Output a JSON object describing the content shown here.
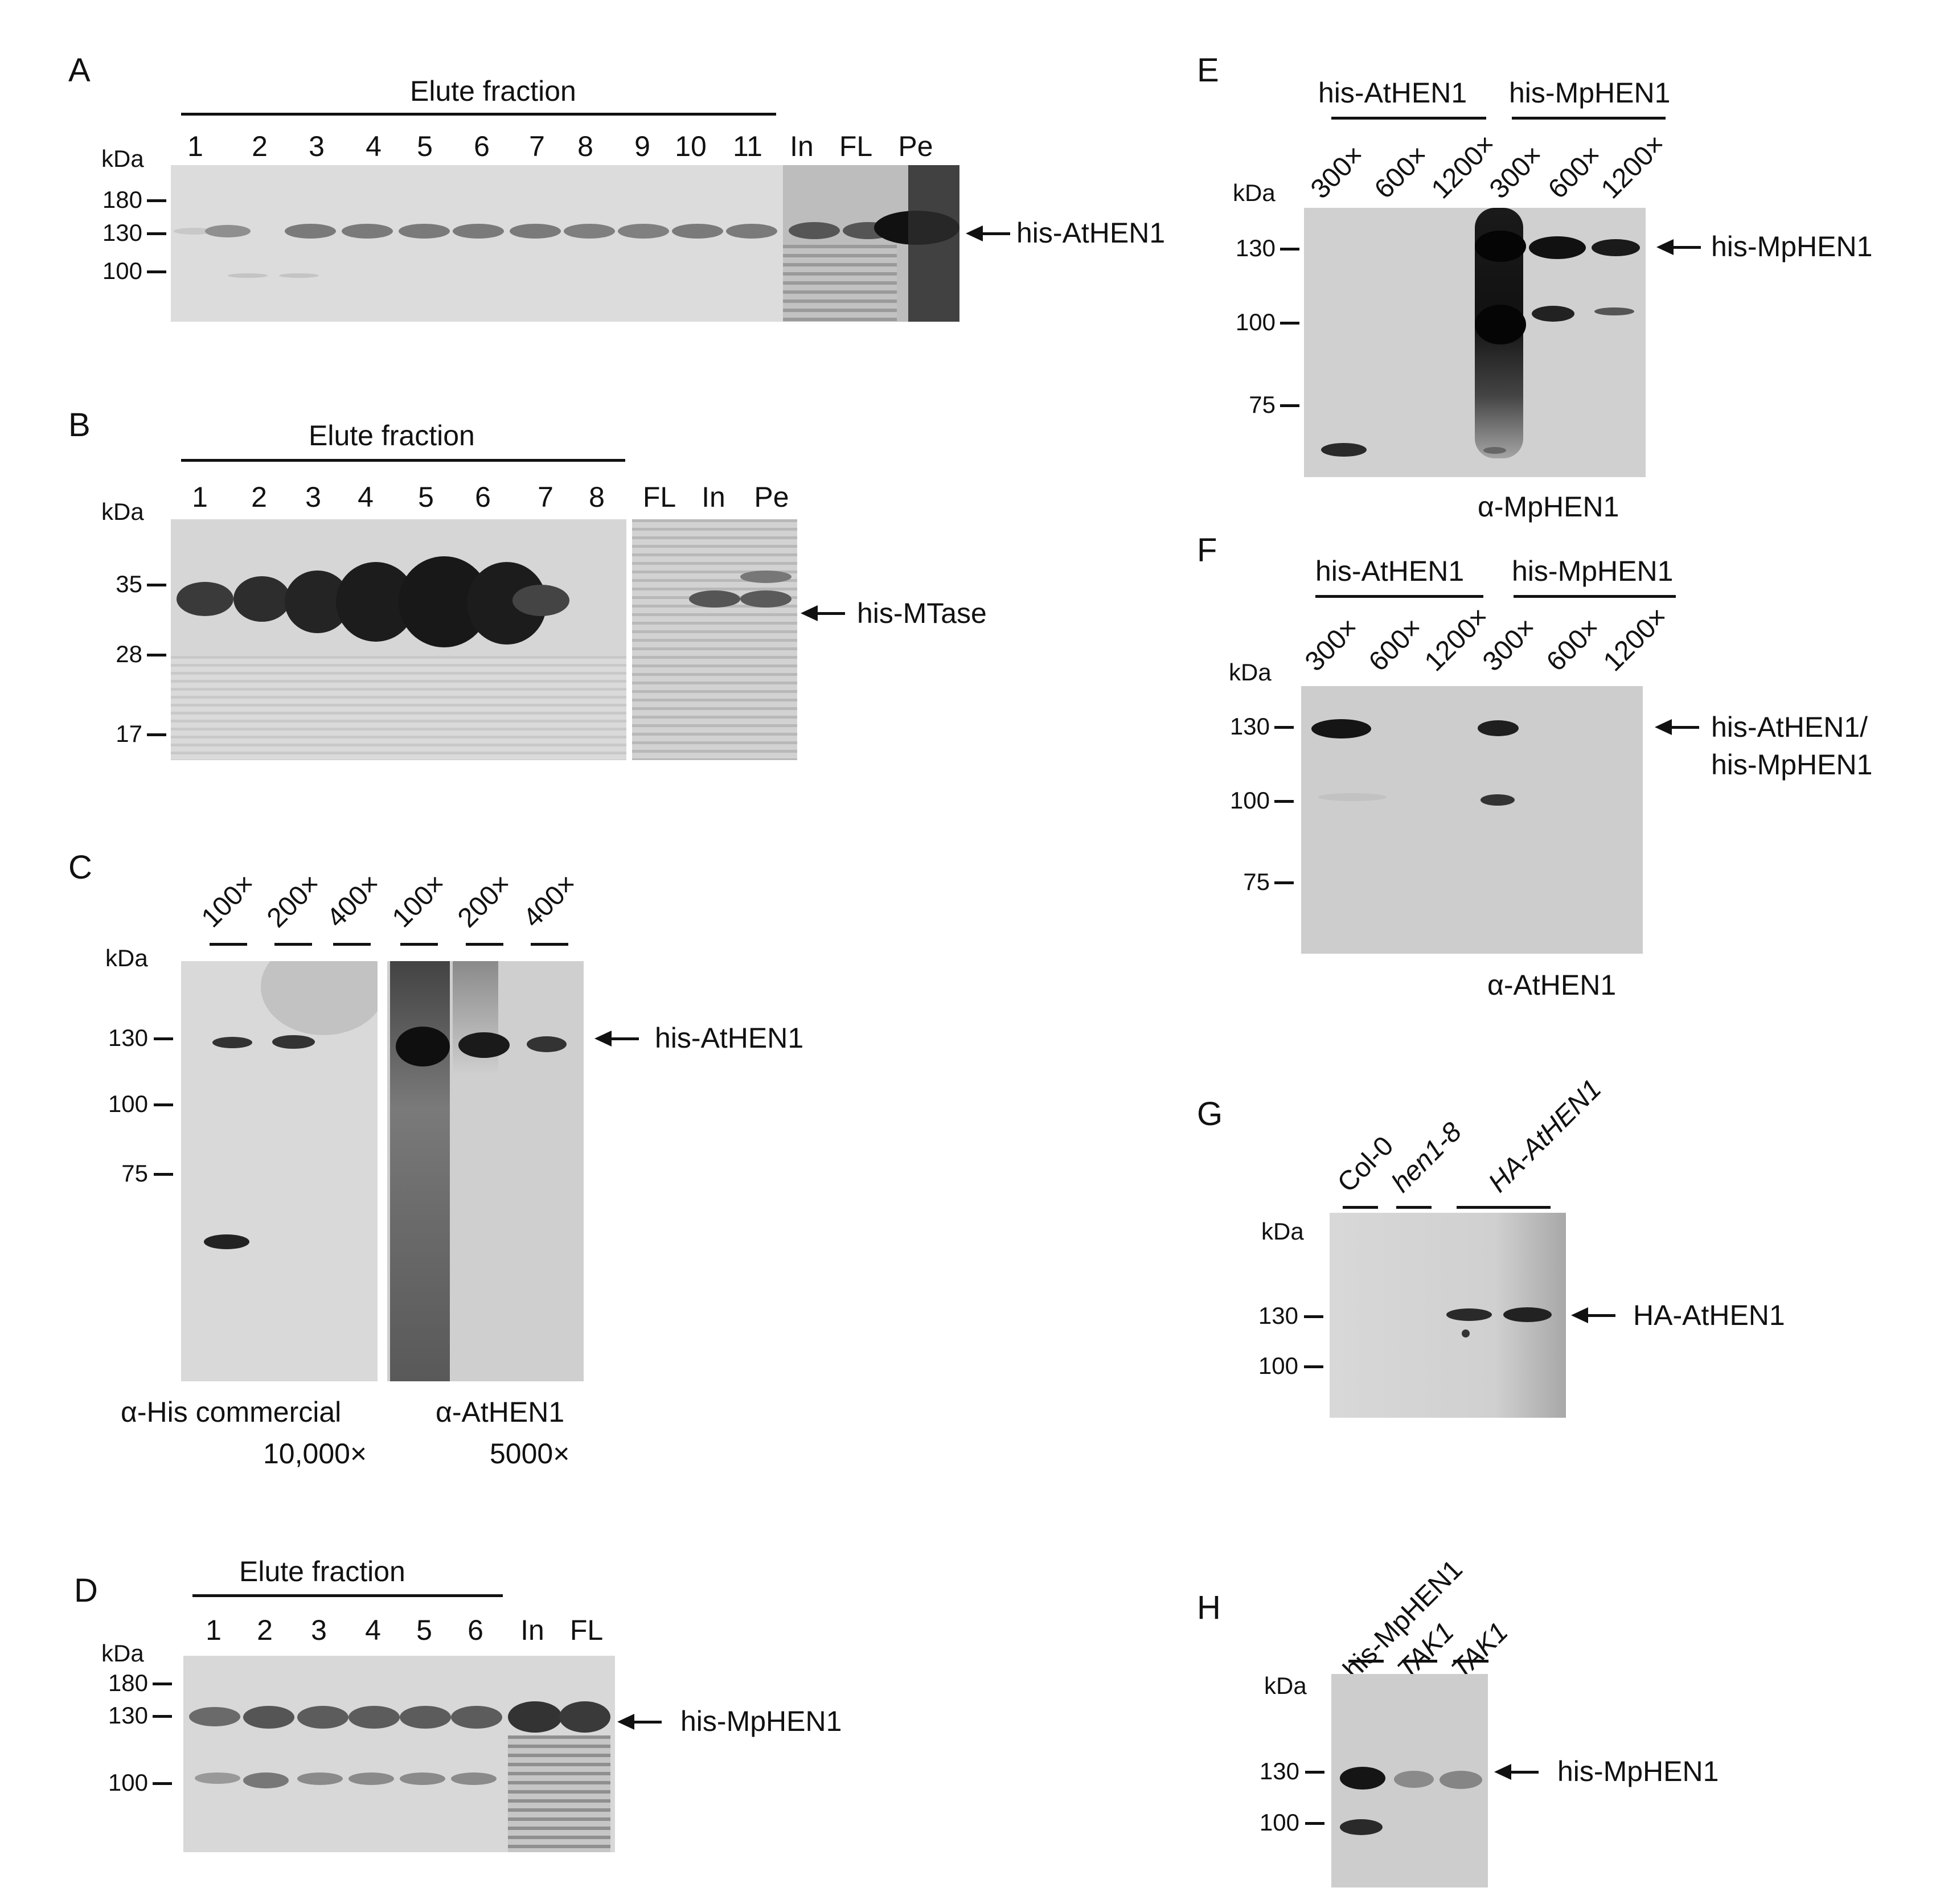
{
  "panels": {
    "A": {
      "label": "A",
      "group": "Elute fraction",
      "lanes": [
        "1",
        "2",
        "3",
        "4",
        "5",
        "6",
        "7",
        "8",
        "9",
        "10",
        "11",
        "In",
        "FL",
        "Pe"
      ],
      "unit": "kDa",
      "markers": [
        "180",
        "130",
        "100"
      ],
      "arrow_label": "his-AtHEN1"
    },
    "B": {
      "label": "B",
      "group": "Elute fraction",
      "lanes": [
        "1",
        "2",
        "3",
        "4",
        "5",
        "6",
        "7",
        "8",
        "FL",
        "In",
        "Pe"
      ],
      "unit": "kDa",
      "markers": [
        "35",
        "28",
        "17"
      ],
      "arrow_label": "his-MTase"
    },
    "C": {
      "label": "C",
      "lanes": [
        "100×",
        "200×",
        "400×",
        "100×",
        "200×",
        "400×"
      ],
      "unit": "kDa",
      "markers": [
        "130",
        "100",
        "75"
      ],
      "arrow_label": "his-AtHEN1",
      "caption_left_1": "α-His commercial",
      "caption_left_2": "10,000×",
      "caption_right_1": "α-AtHEN1",
      "caption_right_2": "5000×"
    },
    "D": {
      "label": "D",
      "group": "Elute fraction",
      "lanes": [
        "1",
        "2",
        "3",
        "4",
        "5",
        "6",
        "In",
        "FL"
      ],
      "unit": "kDa",
      "markers": [
        "180",
        "130",
        "100"
      ],
      "arrow_label": "his-MpHEN1"
    },
    "E": {
      "label": "E",
      "group_1": "his-AtHEN1",
      "group_2": "his-MpHEN1",
      "lanes": [
        "300×",
        "600×",
        "1200×",
        "300×",
        "600×",
        "1200×"
      ],
      "unit": "kDa",
      "markers": [
        "130",
        "100",
        "75"
      ],
      "arrow_label": "his-MpHEN1",
      "caption": "α-MpHEN1"
    },
    "F": {
      "label": "F",
      "group_1": "his-AtHEN1",
      "group_2": "his-MpHEN1",
      "lanes": [
        "300×",
        "600×",
        "1200×",
        "300×",
        "600×",
        "1200×"
      ],
      "unit": "kDa",
      "markers": [
        "130",
        "100",
        "75"
      ],
      "arrow_label_1": "his-AtHEN1/",
      "arrow_label_2": "his-MpHEN1",
      "caption": "α-AtHEN1"
    },
    "G": {
      "label": "G",
      "lanes": [
        "Col-0",
        "hen1-8",
        "HA-AtHEN1"
      ],
      "unit": "kDa",
      "markers": [
        "130",
        "100"
      ],
      "arrow_label": "HA-AtHEN1"
    },
    "H": {
      "label": "H",
      "lanes": [
        "his-MpHEN1",
        "TAK1",
        "TAK1"
      ],
      "unit": "kDa",
      "markers": [
        "130",
        "100"
      ],
      "arrow_label": "his-MpHEN1"
    }
  }
}
